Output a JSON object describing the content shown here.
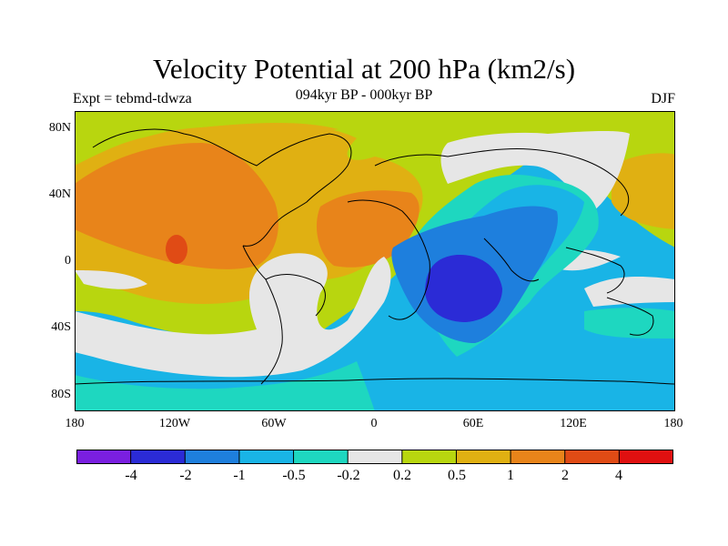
{
  "title": "Velocity Potential at 200 hPa (km2/s)",
  "subtitle": "094kyr BP - 000kyr BP",
  "left_label": "Expt = tebmd-tdwza",
  "right_label": "DJF",
  "lat_labels": [
    "80N",
    "40N",
    "0",
    "40S",
    "80S"
  ],
  "lon_labels": [
    "180",
    "120W",
    "60W",
    "0",
    "60E",
    "120E",
    "180"
  ],
  "colorbar": {
    "labels": [
      "-4",
      "-2",
      "-1",
      "-0.5",
      "-0.2",
      "0.2",
      "0.5",
      "1",
      "2",
      "4"
    ],
    "colors": [
      "#7a1fe0",
      "#2b2bd6",
      "#1e7fdd",
      "#19b4e6",
      "#1ed7c0",
      "#e6e6e6",
      "#b8d60f",
      "#e0b012",
      "#e8841a",
      "#e04b15",
      "#e01010"
    ]
  },
  "chart_data": {
    "type": "contour map",
    "title": "Velocity Potential at 200 hPa (km2/s)",
    "subtitle": "094kyr BP - 000kyr BP",
    "left_string": "Expt = tebmd-tdwza",
    "season": "DJF",
    "x_axis": {
      "ticks": [
        "180",
        "120W",
        "60W",
        "0",
        "60E",
        "120E",
        "180"
      ],
      "range": [
        -180,
        180
      ]
    },
    "y_axis": {
      "ticks": [
        "80N",
        "40N",
        "0",
        "40S",
        "80S"
      ],
      "range": [
        -90,
        90
      ]
    },
    "contour_levels": [
      -4,
      -2,
      -1,
      -0.5,
      -0.2,
      0.2,
      0.5,
      1,
      2,
      4
    ],
    "features": [
      {
        "region": "Indian Ocean / southern Africa",
        "value_range": "< -2",
        "description": "strong negative minimum near 50E, 20S"
      },
      {
        "region": "Eurasia / Indian Ocean",
        "value_range": "-1 to -0.5",
        "description": "broad negative area"
      },
      {
        "region": "Southern Ocean",
        "value_range": "-0.5 to -0.2",
        "description": "negative belt"
      },
      {
        "region": "Eastern Pacific",
        "value_range": "2 to 4",
        "description": "positive maximum near 120W, 5N"
      },
      {
        "region": "North America / North Atlantic / North Africa",
        "value_range": "1 to 2",
        "description": "positive area"
      },
      {
        "region": "Western Pacific",
        "value_range": "0.5 to 1",
        "description": "positive area"
      }
    ]
  }
}
